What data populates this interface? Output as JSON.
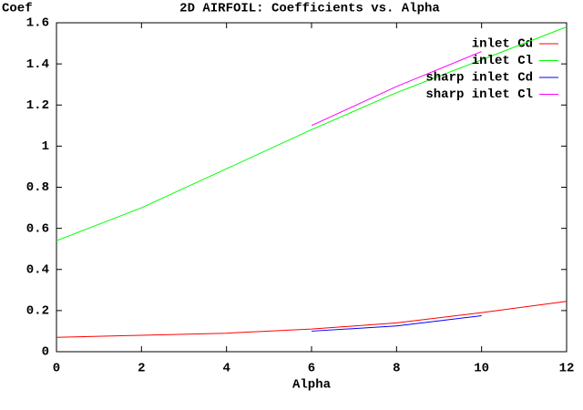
{
  "chart_data": {
    "type": "line",
    "title": "2D AIRFOIL: Coefficients vs. Alpha",
    "x_label": "Alpha",
    "y_label": "Coef",
    "x": [
      0,
      2,
      4,
      6,
      8,
      10,
      12
    ],
    "series": [
      {
        "name": "inlet Cd",
        "color": "#ff0000",
        "values": [
          0.07,
          0.08,
          0.09,
          0.11,
          0.14,
          0.19,
          0.245
        ]
      },
      {
        "name": "inlet Cl",
        "color": "#00ff00",
        "values": [
          0.54,
          0.7,
          0.89,
          1.08,
          1.26,
          1.42,
          1.58
        ]
      },
      {
        "name": "sharp inlet Cd",
        "color": "#0000ff",
        "values": [
          null,
          null,
          null,
          0.1,
          0.125,
          0.175,
          null
        ]
      },
      {
        "name": "sharp inlet Cl",
        "color": "#ff00ff",
        "values": [
          null,
          null,
          null,
          1.1,
          1.29,
          1.46,
          null
        ]
      }
    ],
    "xlim": [
      0,
      12
    ],
    "ylim": [
      0,
      1.6
    ],
    "xticks": [
      0,
      2,
      4,
      6,
      8,
      10,
      12
    ],
    "yticks": [
      0,
      0.2,
      0.4,
      0.6,
      0.8,
      1,
      1.2,
      1.4,
      1.6
    ],
    "legend": "upper right"
  }
}
